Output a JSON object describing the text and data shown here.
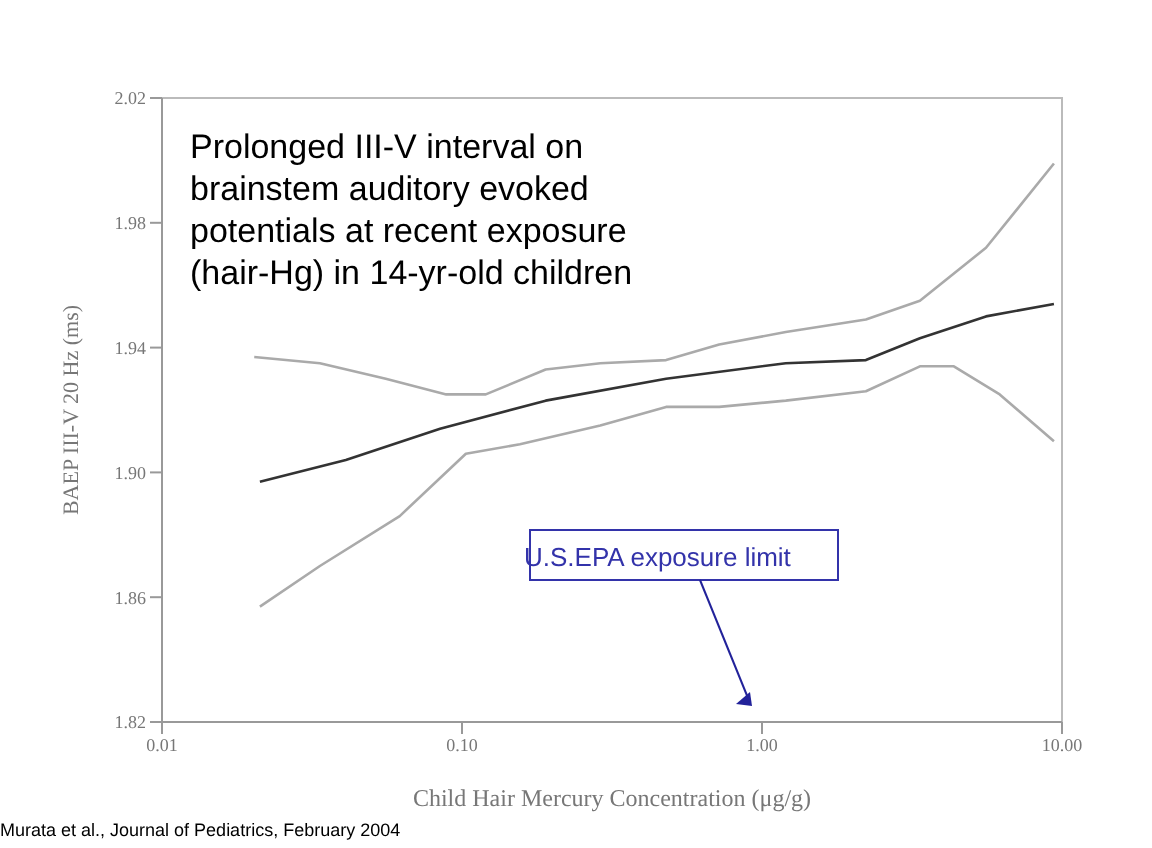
{
  "chart_data": {
    "type": "line",
    "title": "Prolonged III-V interval on brainstem auditory evoked potentials at recent exposure (hair-Hg) in 14-yr-old children",
    "xlabel": "Child Hair Mercury Concentration (μg/g)",
    "ylabel": "BAEP III-V 20 Hz (ms)",
    "log": "x",
    "xlim": [
      0.01,
      10
    ],
    "xticks": [
      {
        "value": 0.01,
        "label": "0.01"
      },
      {
        "value": 0.1,
        "label": "0.10"
      },
      {
        "value": 1,
        "label": "1.00"
      },
      {
        "value": 10,
        "label": "10.00"
      }
    ],
    "ylim": [
      1.82,
      2.02
    ],
    "yticks": [
      1.82,
      1.86,
      {
        "value": 1.9,
        "label": "1.90"
      },
      1.94,
      1.98,
      2.02
    ],
    "marker": "none",
    "line_style": "solid",
    "series": [
      {
        "color": "#333333",
        "x": [
          0.0212,
          0.041,
          0.0845,
          0.19,
          0.479,
          1.2,
          2.22,
          3.36,
          5.58,
          9.4
        ],
        "values": [
          1.897,
          1.904,
          1.914,
          1.923,
          1.93,
          1.935,
          1.936,
          1.943,
          1.95,
          1.954
        ]
      },
      {
        "color": "#aaaaaa",
        "x": [
          0.0203,
          0.0336,
          0.0557,
          0.0886,
          0.12,
          0.19,
          0.289,
          0.479,
          0.72,
          1.2,
          2.22,
          3.36,
          5.58,
          9.4
        ],
        "values": [
          1.937,
          1.935,
          1.93,
          1.925,
          1.925,
          1.933,
          1.935,
          1.936,
          1.941,
          1.945,
          1.949,
          1.955,
          1.972,
          1.999
        ]
      },
      {
        "color": "#aaaaaa",
        "x": [
          0.0212,
          0.0336,
          0.062,
          0.103,
          0.156,
          0.289,
          0.479,
          0.72,
          1.2,
          2.22,
          3.36,
          4.36,
          6.2,
          9.4
        ],
        "values": [
          1.857,
          1.87,
          1.886,
          1.906,
          1.909,
          1.915,
          1.921,
          1.921,
          1.923,
          1.926,
          1.934,
          1.934,
          1.925,
          1.91
        ]
      }
    ],
    "annotations": [
      "U.S.EPA exposure limit",
      "Murata et al., Journal of Pediatrics, February 2004"
    ]
  }
}
